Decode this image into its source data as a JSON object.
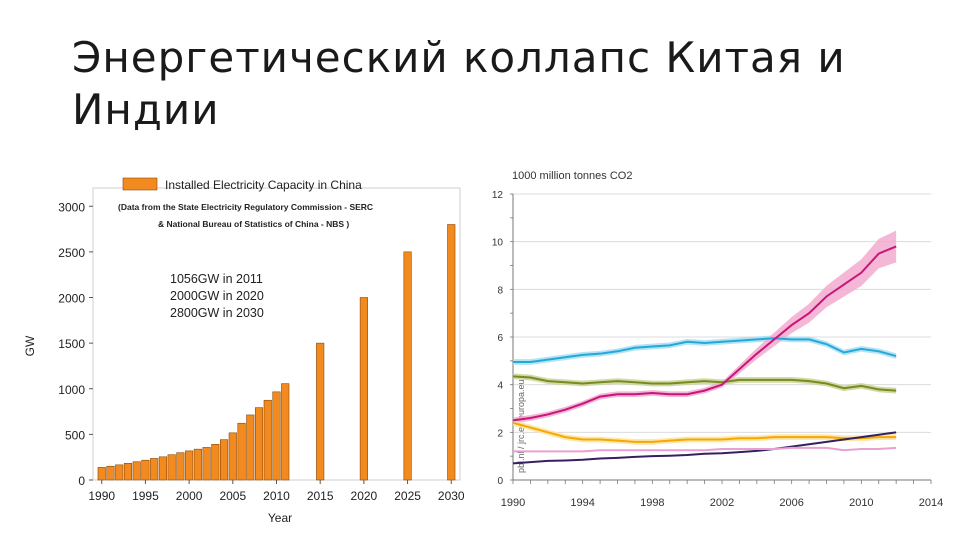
{
  "slide": {
    "title": "Энергетический коллапс Китая и Индии"
  },
  "chart_data": [
    {
      "type": "bar",
      "title": "Installed Electricity Capacity in China",
      "subtitle_lines": [
        "(Data from the State Electricity Regulatory Commission - SERC",
        "& National Bureau of Statistics of China - NBS )"
      ],
      "annotation_lines": [
        "1056GW in 2011",
        "2000GW in 2020",
        "2800GW in 2030"
      ],
      "xlabel": "Year",
      "ylabel": "GW",
      "ylim": [
        0,
        3200
      ],
      "yticks": [
        0,
        500,
        1000,
        1500,
        2000,
        2500,
        3000
      ],
      "xticks": [
        1990,
        1995,
        2000,
        2005,
        2010,
        2015,
        2020,
        2025,
        2030
      ],
      "xlim": [
        1989,
        2031
      ],
      "color": "#f28a1f",
      "legend": "top",
      "series": [
        {
          "name": "Installed Electricity Capacity in China",
          "x": [
            1990,
            1991,
            1992,
            1993,
            1994,
            1995,
            1996,
            1997,
            1998,
            1999,
            2000,
            2001,
            2002,
            2003,
            2004,
            2005,
            2006,
            2007,
            2008,
            2009,
            2010,
            2011,
            2015,
            2020,
            2025,
            2030
          ],
          "values": [
            138,
            151,
            166,
            183,
            200,
            217,
            236,
            254,
            277,
            299,
            319,
            338,
            357,
            391,
            442,
            517,
            622,
            713,
            793,
            874,
            966,
            1056,
            1500,
            2000,
            2500,
            2800
          ]
        }
      ]
    },
    {
      "type": "line",
      "title": "1000 million tonnes CO2",
      "ylim": [
        0,
        12
      ],
      "yticks": [
        0,
        2,
        4,
        6,
        8,
        10,
        12
      ],
      "xlim": [
        1990,
        2014
      ],
      "xticks": [
        1990,
        1994,
        1998,
        2002,
        2006,
        2010,
        2014
      ],
      "source_note": "pbl.nl / jrc.ec.europa.eu",
      "grid": true,
      "x": [
        1990,
        1991,
        1992,
        1993,
        1994,
        1995,
        1996,
        1997,
        1998,
        1999,
        2000,
        2001,
        2002,
        2003,
        2004,
        2005,
        2006,
        2007,
        2008,
        2009,
        2010,
        2011,
        2012
      ],
      "series": [
        {
          "color": "#23a9d8",
          "band": "#a8def2",
          "values": [
            4.95,
            4.95,
            5.05,
            5.15,
            5.25,
            5.3,
            5.4,
            5.55,
            5.6,
            5.65,
            5.8,
            5.75,
            5.8,
            5.85,
            5.9,
            5.95,
            5.9,
            5.9,
            5.7,
            5.35,
            5.5,
            5.4,
            5.2
          ]
        },
        {
          "color": "#7a8a1c",
          "band": "#c9d39a",
          "values": [
            4.35,
            4.3,
            4.15,
            4.1,
            4.05,
            4.1,
            4.15,
            4.1,
            4.05,
            4.05,
            4.1,
            4.15,
            4.1,
            4.2,
            4.2,
            4.2,
            4.2,
            4.15,
            4.05,
            3.85,
            3.95,
            3.8,
            3.75
          ]
        },
        {
          "color": "#c8157a",
          "band": "#f2aacf",
          "values": [
            2.5,
            2.6,
            2.75,
            2.95,
            3.2,
            3.5,
            3.6,
            3.6,
            3.65,
            3.6,
            3.6,
            3.75,
            4.0,
            4.65,
            5.3,
            5.9,
            6.5,
            7.0,
            7.7,
            8.2,
            8.7,
            9.5,
            9.8
          ]
        },
        {
          "color": "#f5a800",
          "band": "#fbe3a0",
          "values": [
            2.4,
            2.2,
            2.0,
            1.8,
            1.7,
            1.7,
            1.65,
            1.6,
            1.6,
            1.65,
            1.7,
            1.7,
            1.7,
            1.75,
            1.75,
            1.8,
            1.8,
            1.8,
            1.8,
            1.75,
            1.75,
            1.8,
            1.8
          ]
        },
        {
          "color": "#352060",
          "band": null,
          "values": [
            0.7,
            0.75,
            0.8,
            0.82,
            0.85,
            0.9,
            0.93,
            0.97,
            1.0,
            1.02,
            1.05,
            1.1,
            1.12,
            1.17,
            1.22,
            1.3,
            1.4,
            1.5,
            1.6,
            1.7,
            1.8,
            1.9,
            2.0
          ]
        },
        {
          "color": "#e8a0d0",
          "band": null,
          "values": [
            1.2,
            1.2,
            1.2,
            1.2,
            1.2,
            1.25,
            1.25,
            1.25,
            1.25,
            1.25,
            1.25,
            1.25,
            1.3,
            1.3,
            1.3,
            1.3,
            1.35,
            1.35,
            1.35,
            1.25,
            1.3,
            1.3,
            1.35
          ]
        }
      ]
    }
  ]
}
